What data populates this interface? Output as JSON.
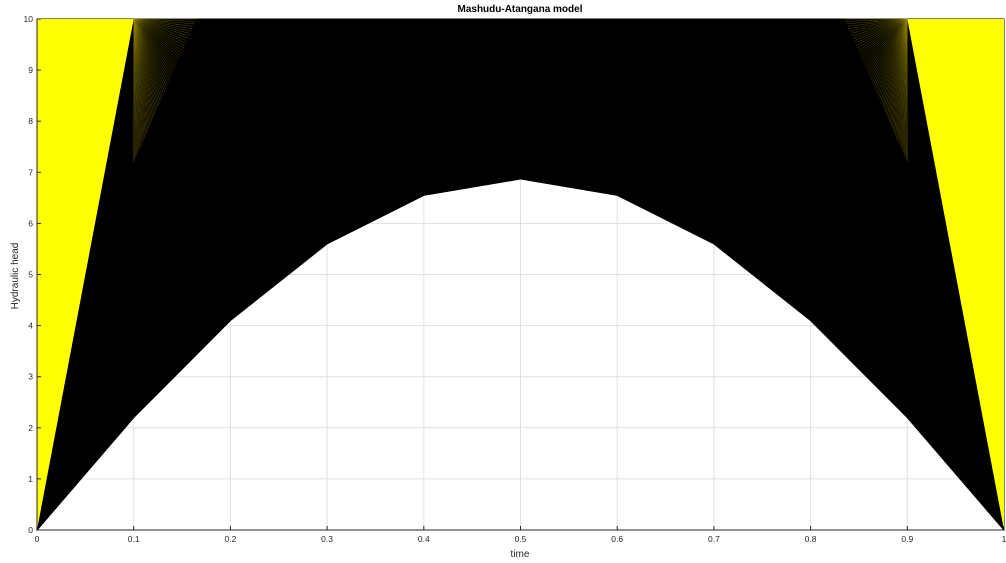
{
  "chart_data": {
    "type": "line",
    "title": "Mashudu-Atangana model",
    "xlabel": "time",
    "ylabel": "Hydraulic head",
    "xlim": [
      0,
      1
    ],
    "ylim": [
      0,
      10
    ],
    "x_ticks": [
      "0",
      "0.1",
      "0.2",
      "0.3",
      "0.4",
      "0.5",
      "0.6",
      "0.7",
      "0.8",
      "0.9",
      "1"
    ],
    "y_ticks": [
      "0",
      "1",
      "2",
      "3",
      "4",
      "5",
      "6",
      "7",
      "8",
      "9",
      "10"
    ],
    "grid": true,
    "legend": "none",
    "series": [
      {
        "x": [
          0,
          0.1,
          0.2,
          0.3,
          0.4,
          0.5,
          0.6,
          0.7,
          0.8,
          0.9,
          1
        ],
        "y": [
          0,
          2.2,
          4.1,
          5.6,
          6.55,
          6.87,
          6.55,
          5.6,
          4.1,
          2.2,
          0
        ],
        "color": "#000000"
      }
    ],
    "yellow_regions": [
      {
        "x": [
          0,
          0,
          0.1
        ],
        "y": [
          0,
          10,
          10
        ],
        "color": "#ffff00"
      },
      {
        "x": [
          0.9,
          1,
          1
        ],
        "y": [
          10,
          10,
          0
        ],
        "color": "#ffff00"
      }
    ],
    "fill_color": "#000000",
    "background_color": "#ffffff"
  }
}
